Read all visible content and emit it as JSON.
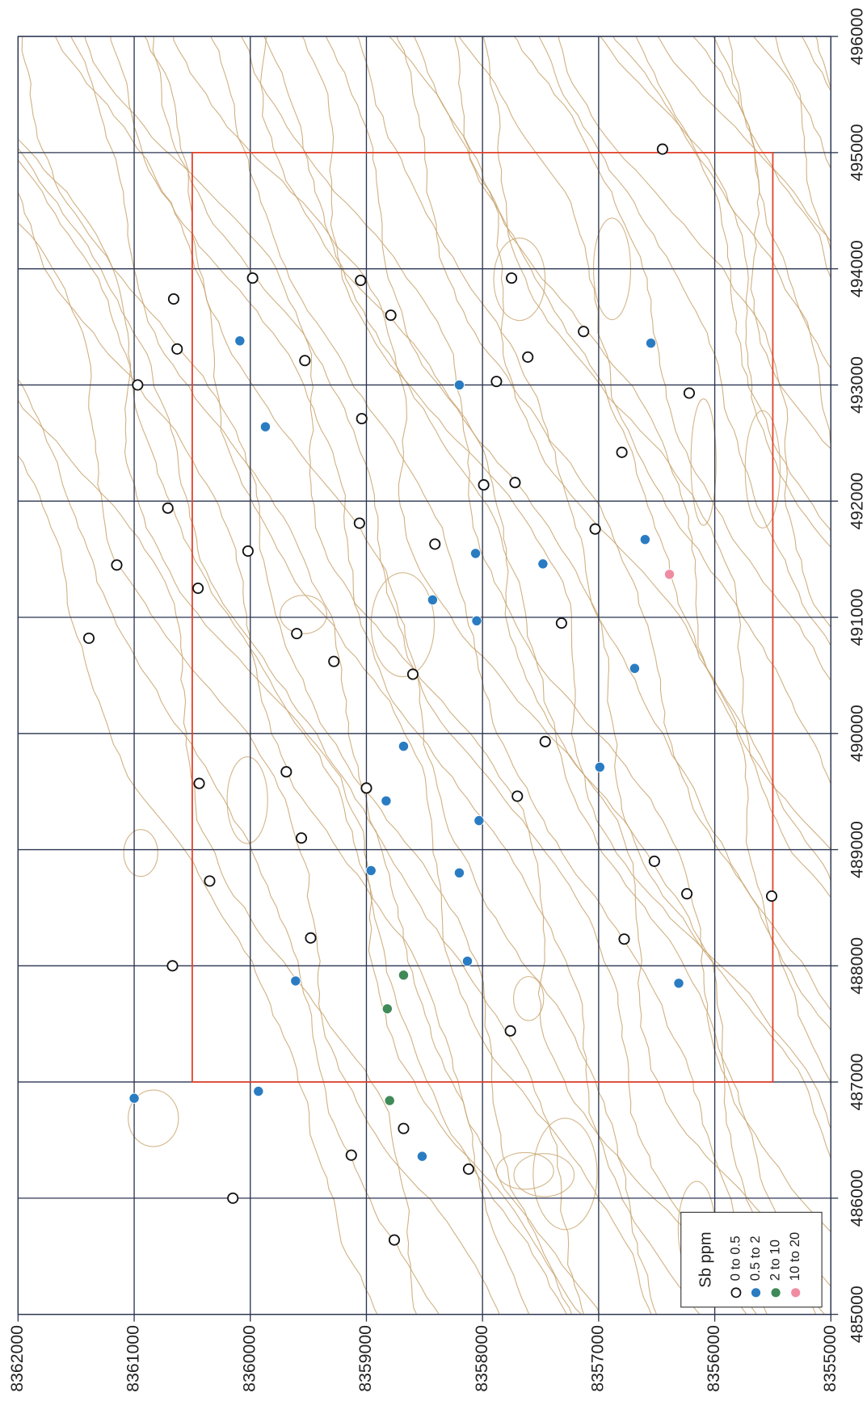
{
  "chart_data": {
    "type": "scatter",
    "orientation": "rotated",
    "legend": "lower right",
    "legend_title": "Sb ppm",
    "grid": true,
    "grid_color": "#2b3550",
    "contour_color": "#c9a56e",
    "xlim": [
      485000,
      496000
    ],
    "xticks": [
      485000,
      486000,
      487000,
      488000,
      489000,
      490000,
      491000,
      492000,
      493000,
      494000,
      495000,
      496000
    ],
    "ylim": [
      8355000,
      8362000
    ],
    "yticks": [
      8362000,
      8361000,
      8360000,
      8359000,
      8358000,
      8357000,
      8356000,
      8355000
    ],
    "box": {
      "xlim": [
        487000,
        495000
      ],
      "ylim": [
        8355500,
        8360500
      ],
      "color": "#e0402a"
    },
    "series": [
      {
        "name": "0 to 0.5",
        "color": "#111111",
        "hollow": true,
        "x": [
          495030,
          493920,
          493900,
          493920,
          493600,
          493740,
          493310,
          493210,
          493240,
          493460,
          493030,
          493000,
          492930,
          492710,
          492420,
          492140,
          492160,
          491940,
          491810,
          491630,
          491760,
          491570,
          491450,
          491250,
          490950,
          490820,
          490860,
          490620,
          490510,
          489930,
          489670,
          489570,
          489530,
          489460,
          489100,
          488900,
          488730,
          488620,
          488600,
          488240,
          488230,
          488000,
          487440,
          486600,
          486370,
          486250,
          486000,
          485640
        ],
        "values": [
          8356450,
          8357750,
          8359050,
          8359980,
          8358790,
          8360660,
          8360630,
          8359530,
          8357610,
          8357130,
          8357880,
          8360970,
          8356220,
          8359040,
          8356800,
          8357990,
          8357720,
          8360710,
          8359060,
          8358410,
          8357030,
          8360020,
          8361150,
          8360450,
          8357320,
          8361390,
          8359600,
          8359280,
          8358600,
          8357460,
          8359690,
          8360440,
          8359000,
          8357700,
          8359560,
          8356520,
          8360350,
          8356240,
          8355510,
          8359480,
          8356780,
          8360670,
          8357760,
          8358680,
          8359130,
          8358120,
          8360150,
          8358760
        ]
      },
      {
        "name": "0.5 to 2",
        "color": "#2a7cc2",
        "hollow": false,
        "x": [
          493380,
          493000,
          492640,
          491550,
          491460,
          491670,
          491150,
          490970,
          490560,
          489890,
          489710,
          489420,
          489250,
          488820,
          488800,
          487870,
          488040,
          487850,
          486860,
          486920,
          486360,
          493360
        ],
        "values": [
          8360090,
          8358200,
          8359870,
          8358060,
          8357480,
          8356600,
          8358430,
          8358050,
          8356690,
          8358680,
          8356990,
          8358830,
          8358030,
          8358960,
          8358200,
          8359610,
          8358130,
          8356310,
          8361000,
          8359930,
          8358520,
          8356550
        ]
      },
      {
        "name": "2 to 10",
        "color": "#3f8a58",
        "hollow": false,
        "x": [
          487920,
          487630,
          486840
        ],
        "values": [
          8358680,
          8358820,
          8358800
        ]
      },
      {
        "name": "10 to 20",
        "color": "#f08ca2",
        "hollow": false,
        "x": [
          491370
        ],
        "values": [
          8356390
        ]
      }
    ]
  }
}
